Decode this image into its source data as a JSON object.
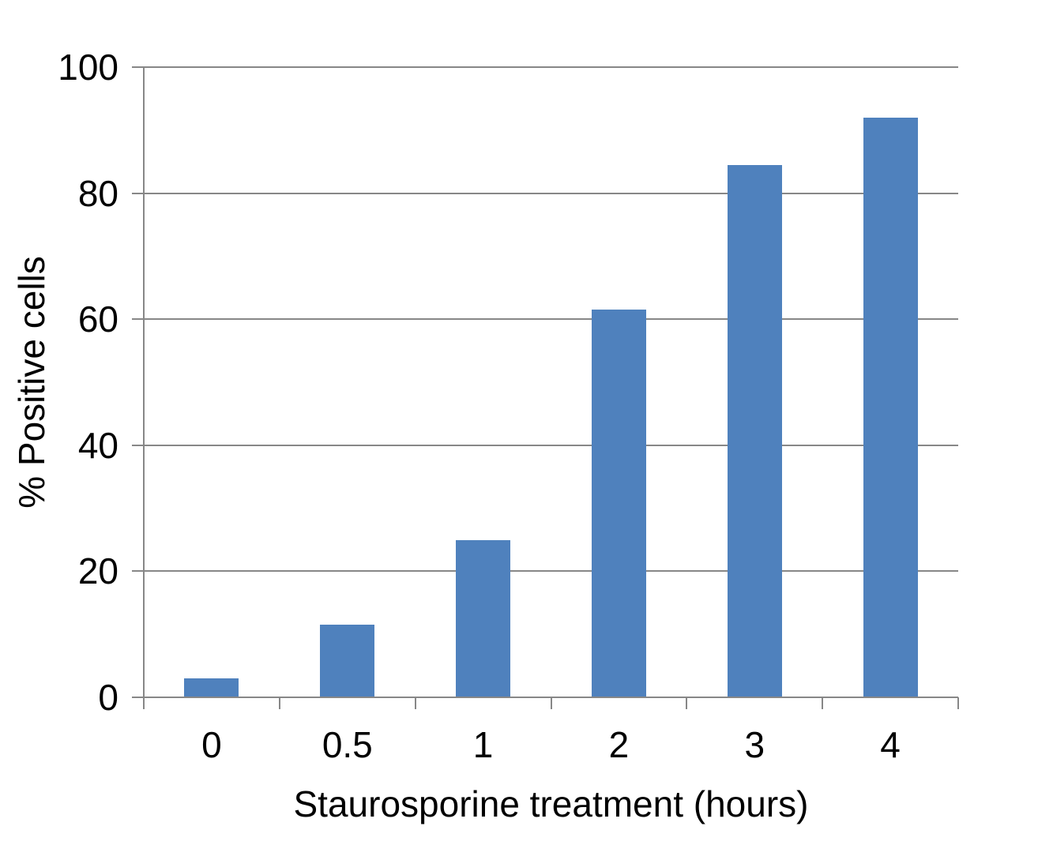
{
  "chart_data": {
    "type": "bar",
    "categories": [
      "0",
      "0.5",
      "1",
      "2",
      "3",
      "4"
    ],
    "values": [
      3,
      11.5,
      25,
      61.5,
      84.5,
      92
    ],
    "title": "",
    "xlabel": "Staurosporine treatment (hours)",
    "ylabel": "% Positive cells",
    "ylim": [
      0,
      100
    ],
    "yticks": [
      0,
      20,
      40,
      60,
      80,
      100
    ],
    "grid": true,
    "legend_position": "none",
    "bar_color": "#4F81BD",
    "axis_color": "#878787",
    "text_color": "#000000",
    "background_color": "#ffffff"
  }
}
